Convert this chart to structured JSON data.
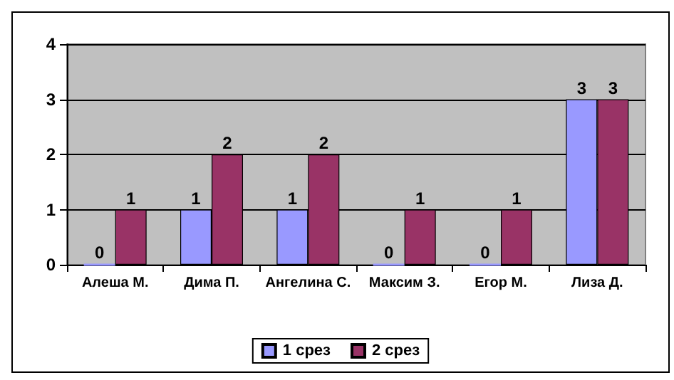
{
  "chart_data": {
    "type": "bar",
    "categories": [
      "Алеша М.",
      "Дима П.",
      "Ангелина С.",
      "Максим З.",
      "Егор М.",
      "Лиза Д."
    ],
    "series": [
      {
        "name": "1 срез",
        "color": "#9999ff",
        "values": [
          0,
          1,
          1,
          0,
          0,
          3
        ]
      },
      {
        "name": "2 срез",
        "color": "#993366",
        "values": [
          1,
          2,
          2,
          1,
          1,
          3
        ]
      }
    ],
    "ylim": [
      0,
      4
    ],
    "yticks": [
      0,
      1,
      2,
      3,
      4
    ],
    "grid": "y",
    "legend": "bottom",
    "data_labels": true
  }
}
